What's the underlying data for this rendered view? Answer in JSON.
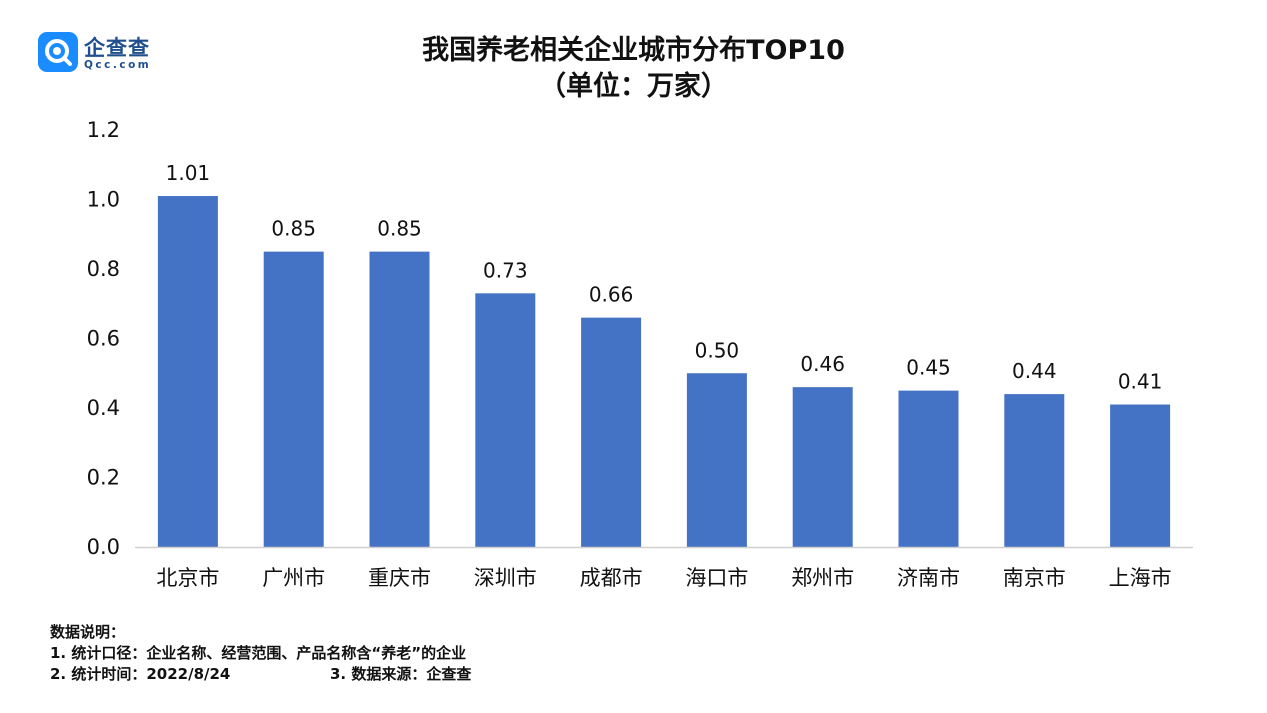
{
  "logo": {
    "name": "企查查",
    "sub": "Qcc.com",
    "accent": "#1a8cff"
  },
  "chart_data": {
    "type": "bar",
    "title_line1": "我国养老相关企业城市分布TOP10",
    "title_line2": "（单位：万家）",
    "categories": [
      "北京市",
      "广州市",
      "重庆市",
      "深圳市",
      "成都市",
      "海口市",
      "郑州市",
      "济南市",
      "南京市",
      "上海市"
    ],
    "values": [
      1.01,
      0.85,
      0.85,
      0.73,
      0.66,
      0.5,
      0.46,
      0.45,
      0.44,
      0.41
    ],
    "data_labels": [
      "1.01",
      "0.85",
      "0.85",
      "0.73",
      "0.66",
      "0.50",
      "0.46",
      "0.45",
      "0.44",
      "0.41"
    ],
    "ylim": [
      0,
      1.2
    ],
    "yticks": [
      "0.0",
      "0.2",
      "0.4",
      "0.6",
      "0.8",
      "1.0",
      "1.2"
    ],
    "grid": false,
    "bar_color": "#4472c4",
    "xlabel": "",
    "ylabel": ""
  },
  "notes": {
    "heading": "数据说明：",
    "line1": "1. 统计口径：企业名称、经营范围、产品名称含“养老”的企业",
    "line2_time": "2. 统计时间：2022/8/24",
    "line2_source": "3. 数据来源：企查查"
  }
}
